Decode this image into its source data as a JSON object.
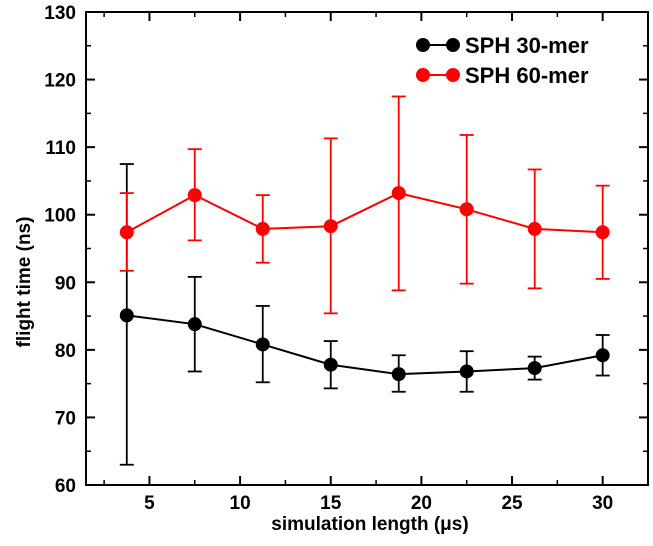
{
  "chart_data": {
    "type": "line",
    "xlabel": "simulation length (μs)",
    "ylabel": "flight time (ns)",
    "xlim": [
      1.5,
      32.5
    ],
    "ylim": [
      60,
      130
    ],
    "xticks": [
      5,
      10,
      15,
      20,
      25,
      30
    ],
    "yticks": [
      60,
      70,
      80,
      90,
      100,
      110,
      120,
      130
    ],
    "legend_position": "top-right",
    "series": [
      {
        "name": "SPH 30-mer",
        "color": "#000000",
        "x": [
          3.75,
          7.5,
          11.25,
          15.0,
          18.75,
          22.5,
          26.25,
          30.0
        ],
        "y": [
          85.1,
          83.8,
          80.8,
          77.8,
          76.4,
          76.8,
          77.3,
          79.2
        ],
        "err_low": [
          63.0,
          76.8,
          75.2,
          74.3,
          73.8,
          73.8,
          75.6,
          76.2
        ],
        "err_high": [
          107.5,
          90.8,
          86.5,
          81.3,
          79.2,
          79.8,
          79.0,
          82.2
        ]
      },
      {
        "name": "SPH 60-mer",
        "color": "#ff0000",
        "x": [
          3.75,
          7.5,
          11.25,
          15.0,
          18.75,
          22.5,
          26.25,
          30.0
        ],
        "y": [
          97.4,
          102.9,
          97.9,
          98.3,
          103.2,
          100.8,
          97.9,
          97.4
        ],
        "err_low": [
          91.7,
          96.2,
          92.9,
          85.4,
          88.8,
          89.8,
          89.1,
          90.5
        ],
        "err_high": [
          103.2,
          109.7,
          102.9,
          111.3,
          117.5,
          111.8,
          106.7,
          104.3
        ]
      }
    ]
  }
}
